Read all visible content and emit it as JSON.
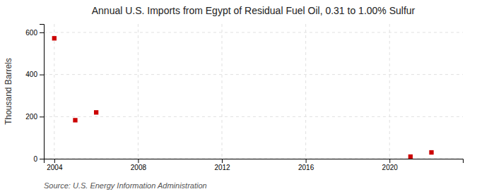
{
  "chart_data": {
    "type": "scatter",
    "title": "Annual U.S. Imports from Egypt of Residual Fuel Oil, 0.31 to 1.00% Sulfur",
    "y_label": "Thousand Barrels",
    "source": "Source: U.S. Energy Information Administration",
    "x": [
      2004,
      2005,
      2006,
      2021,
      2022
    ],
    "values": [
      572,
      183,
      220,
      10,
      30
    ],
    "color": "#cc0000",
    "marker": "square",
    "xlim": [
      2003.5,
      2023.5
    ],
    "ylim": [
      0,
      640
    ],
    "xticks": [
      2004,
      2008,
      2012,
      2016,
      2020
    ],
    "yticks": [
      0,
      200,
      400,
      600
    ],
    "grid": true
  }
}
